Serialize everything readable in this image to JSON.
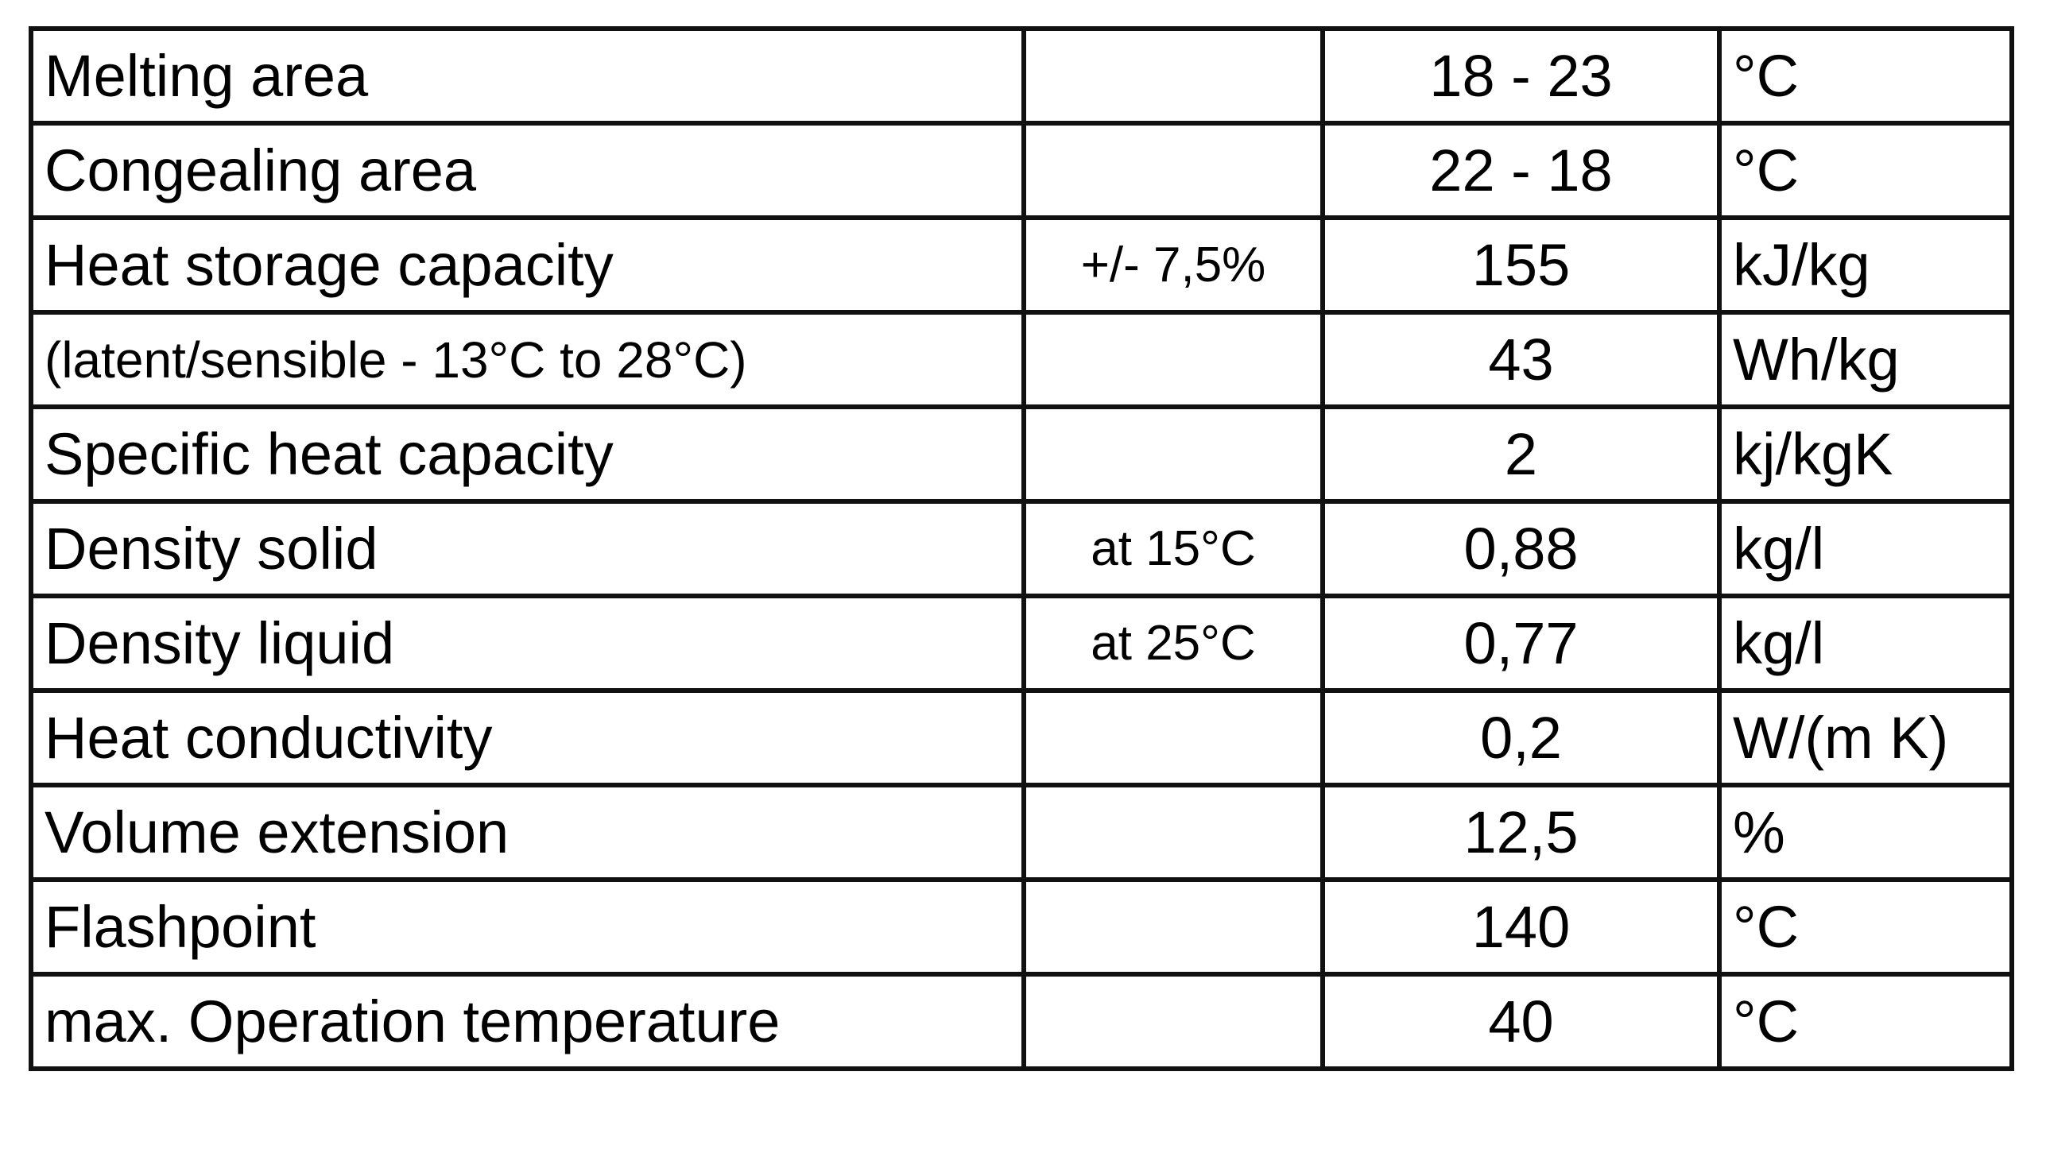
{
  "table": {
    "rows": [
      {
        "property": "Melting area",
        "value": "18 - 23",
        "unit": "°C"
      },
      {
        "property": "Congealing area",
        "value": "22 - 18",
        "unit": "°C"
      },
      {
        "property": "Heat storage capacity",
        "note": "+/- 7,5%",
        "value": "155",
        "unit": "kJ/kg"
      },
      {
        "property": "(latent/sensible - 13°C to 28°C)",
        "value": "43",
        "unit": "Wh/kg"
      },
      {
        "property": "Specific heat capacity",
        "value": "2",
        "unit": "kj/kgK"
      },
      {
        "property": "Density solid",
        "note": "at 15°C",
        "value": "0,88",
        "unit": "kg/l"
      },
      {
        "property": "Density liquid",
        "note": "at 25°C",
        "value": "0,77",
        "unit": "kg/l"
      },
      {
        "property": "Heat conductivity",
        "value": "0,2",
        "unit": "W/(m K)"
      },
      {
        "property": "Volume extension",
        "value": "12,5",
        "unit": "%"
      },
      {
        "property": "Flashpoint",
        "value": "140",
        "unit": "°C"
      },
      {
        "property": "max. Operation temperature",
        "value": "40",
        "unit": "°C"
      }
    ]
  }
}
